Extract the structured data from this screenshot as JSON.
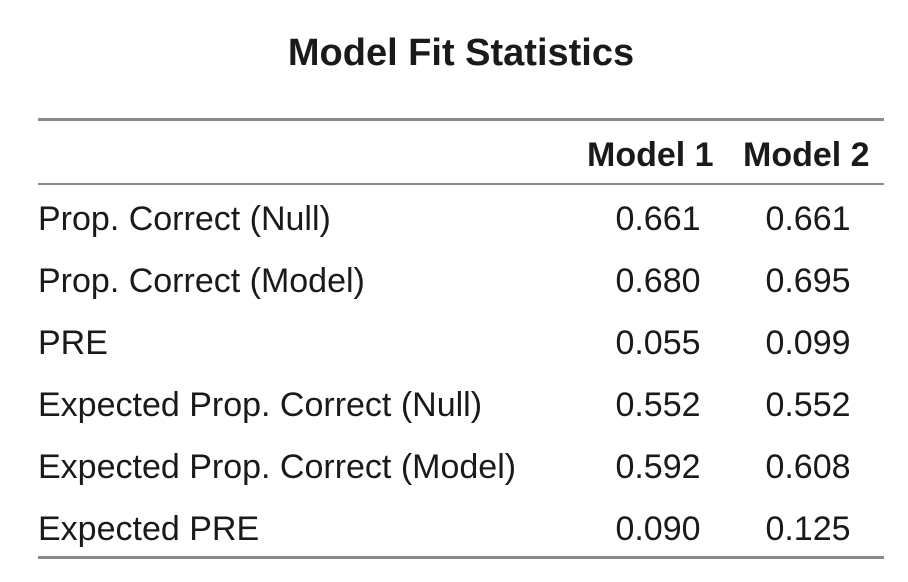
{
  "title": "Model Fit Statistics",
  "columns": [
    "Model 1",
    "Model 2"
  ],
  "rows": [
    {
      "label": "Prop. Correct (Null)",
      "model1": "0.661",
      "model2": "0.661"
    },
    {
      "label": "Prop. Correct (Model)",
      "model1": "0.680",
      "model2": "0.695"
    },
    {
      "label": "PRE",
      "model1": "0.055",
      "model2": "0.099"
    },
    {
      "label": "Expected Prop. Correct (Null)",
      "model1": "0.552",
      "model2": "0.552"
    },
    {
      "label": "Expected Prop. Correct (Model)",
      "model1": "0.592",
      "model2": "0.608"
    },
    {
      "label": "Expected PRE",
      "model1": "0.090",
      "model2": "0.125"
    }
  ]
}
